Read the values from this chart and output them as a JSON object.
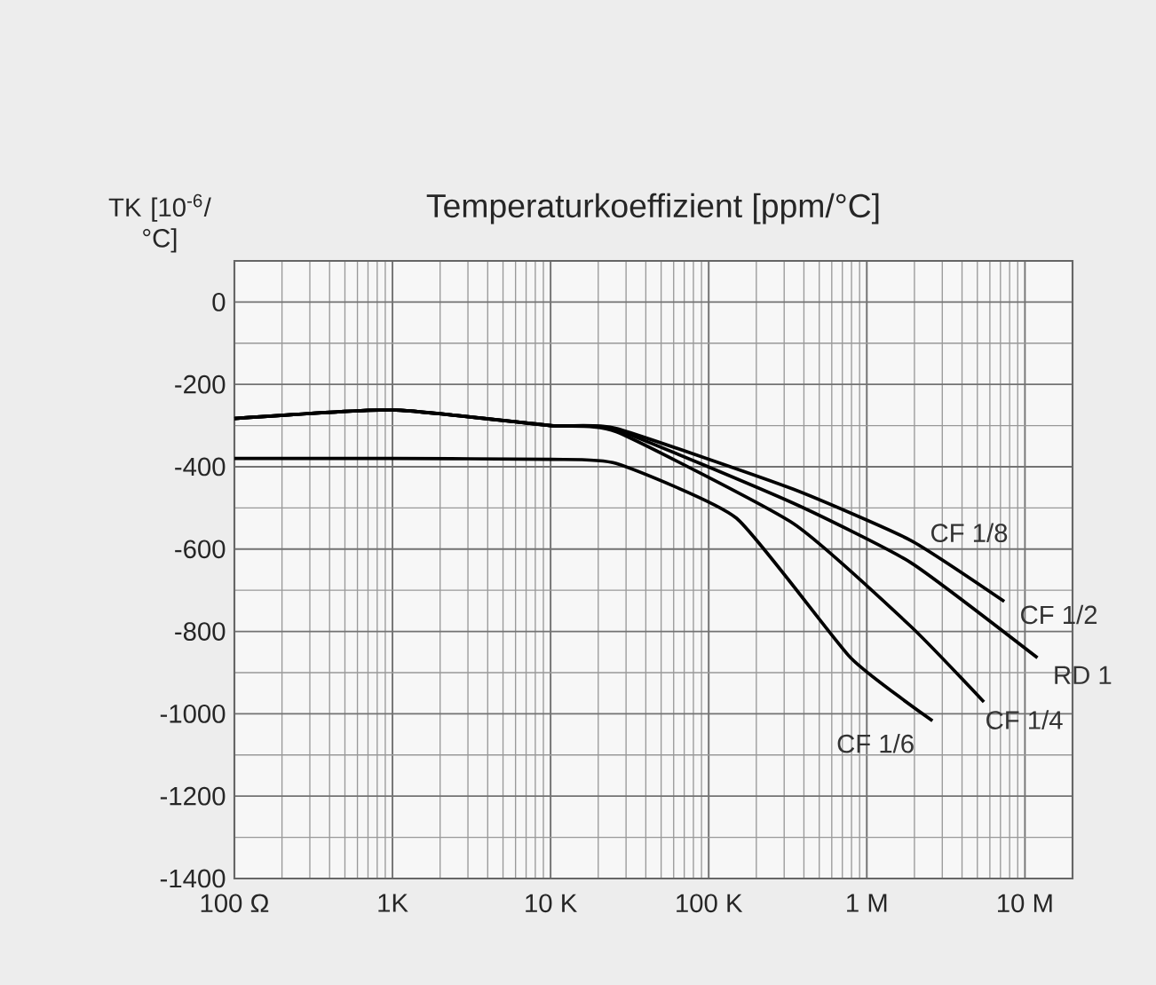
{
  "chart_data": {
    "type": "line",
    "title": "Temperaturkoeffizient [ppm/°C]",
    "ylabel": "TK [10$^{-6}$/ °C]",
    "log": "x",
    "grid": true,
    "marker": "none",
    "line_style": "solid",
    "xlim": [
      100,
      20000000
    ],
    "xticks": [
      {
        "value": 100,
        "label": "100 Ω"
      },
      {
        "value": 1000,
        "label": "1K"
      },
      {
        "value": 10000,
        "label": "10 K"
      },
      {
        "value": 100000,
        "label": "100 K"
      },
      {
        "value": 1000000,
        "label": "1 M"
      },
      {
        "value": 10000000,
        "label": "10 M"
      }
    ],
    "ylim": [
      -1400,
      100
    ],
    "yticks": [
      -1400,
      -1200,
      -1000,
      -800,
      -600,
      -400,
      -200,
      0
    ],
    "annotations": [
      "CF 1/8"
    ],
    "series": [
      {
        "name": "CF 1/2",
        "color": "#000000",
        "x": [
          100,
          1000,
          10000,
          26000,
          340000,
          1900000,
          7400000
        ],
        "values": [
          -283,
          -262,
          -300,
          -307,
          -454,
          -579,
          -727
        ]
      },
      {
        "name": "RD 1",
        "color": "#000000",
        "x": [
          100,
          1000,
          10000,
          26000,
          340000,
          1900000,
          12000000
        ],
        "values": [
          -283,
          -262,
          -300,
          -310,
          -488,
          -633,
          -864
        ]
      },
      {
        "name": "CF 1/4",
        "color": "#000000",
        "x": [
          100,
          1000,
          10000,
          26000,
          340000,
          1900000,
          5500000
        ],
        "values": [
          -283,
          -262,
          -300,
          -315,
          -537,
          -788,
          -971
        ]
      },
      {
        "name": "CF 1/6",
        "color": "#000000",
        "x": [
          100,
          1000,
          10000,
          26000,
          150000,
          790000,
          2600000
        ],
        "values": [
          -380,
          -380,
          -382,
          -392,
          -525,
          -864,
          -1017
        ]
      }
    ]
  }
}
